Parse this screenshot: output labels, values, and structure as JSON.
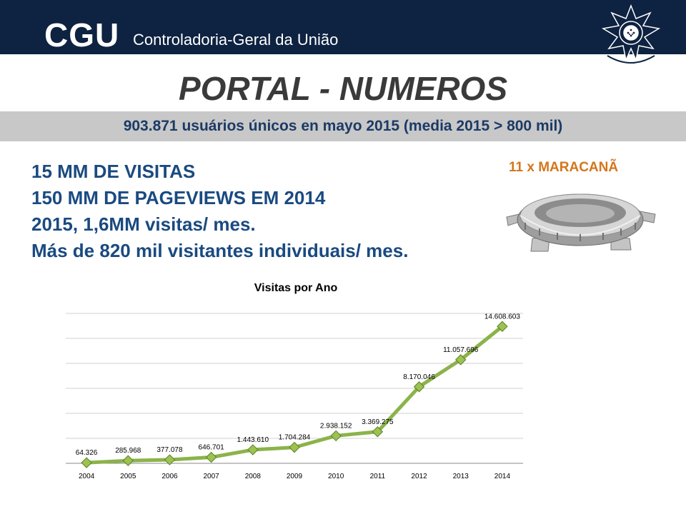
{
  "header": {
    "logo": "CGU",
    "org_name": "Controladoria-Geral da União",
    "seal_icon": "brazil-coat-of-arms-icon"
  },
  "title": "PORTAL - NUMEROS",
  "highlight": "903.871 usuários únicos en mayo 2015 (media 2015 > 800 mil)",
  "bullets": [
    "15 MM DE VISITAS",
    "150 MM DE PAGEVIEWS EM 2014",
    "2015, 1,6MM visitas/ mes.",
    "Más de 820 mil visitantes individuais/ mes."
  ],
  "maracana": {
    "label": "11 x  MARACANÃ",
    "image_icon": "maracana-stadium-icon"
  },
  "colors": {
    "header_bg": "#0e2241",
    "band_bg": "#c8c8c8",
    "band_text": "#1c3a66",
    "bullet_text": "#1a4a80",
    "maracana_text": "#d4761c",
    "line": "#8bb34a"
  },
  "chart_data": {
    "type": "line",
    "title": "Visitas por Ano",
    "x": [
      "2004",
      "2005",
      "2006",
      "2007",
      "2008",
      "2009",
      "2010",
      "2011",
      "2012",
      "2013",
      "2014"
    ],
    "series": [
      {
        "values": [
          64326,
          285968,
          377078,
          646701,
          1443610,
          1704284,
          2938152,
          3369275,
          8170046,
          11057696,
          14608603
        ]
      }
    ],
    "data_labels": [
      "64.326",
      "285.968",
      "377.078",
      "646.701",
      "1.443.610",
      "1.704.284",
      "2.938.152",
      "3.369.275",
      "8.170.046",
      "11.057.696",
      "14.608.603"
    ],
    "ylim": [
      0,
      16000000
    ],
    "y_ticks_shown": false,
    "grid": true,
    "marker": "diamond",
    "line_color": "#8bb34a"
  }
}
